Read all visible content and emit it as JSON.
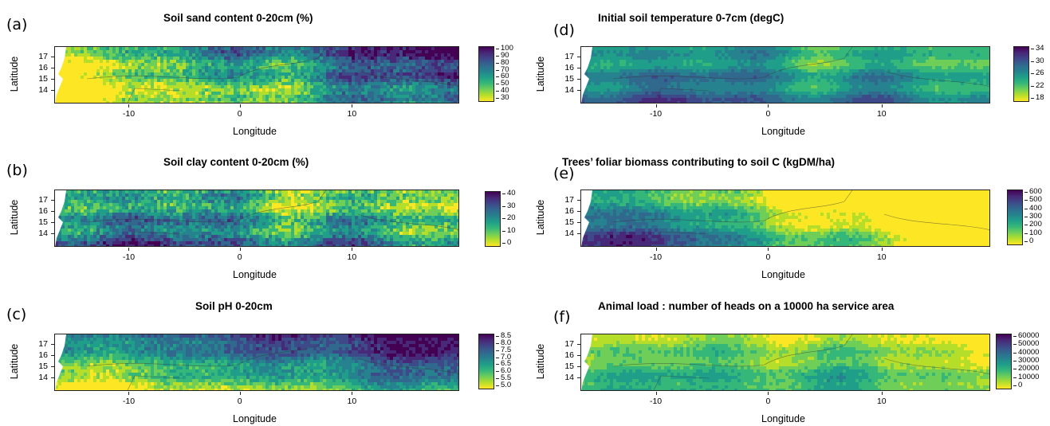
{
  "axes": {
    "xlabel": "Longitude",
    "ylabel": "Latitude",
    "xticks": [
      "-10",
      "0",
      "10"
    ],
    "yticks": [
      "17",
      "16",
      "15",
      "14"
    ]
  },
  "colors": {
    "viridis": [
      "#fde725",
      "#b5de2b",
      "#6ece58",
      "#35b779",
      "#1f9e89",
      "#26828e",
      "#31688e",
      "#3e4989",
      "#482878",
      "#440154"
    ]
  },
  "panels": [
    {
      "id": "a",
      "letter": "(a)",
      "title": "Soil sand content 0-20cm (%)",
      "legend": [
        "100",
        "90",
        "80",
        "70",
        "60",
        "50",
        "40",
        "30"
      ],
      "pattern": "sand"
    },
    {
      "id": "b",
      "letter": "(b)",
      "title": "Soil clay content 0-20cm (%)",
      "legend": [
        "40",
        "30",
        "20",
        "10",
        "0"
      ],
      "pattern": "clay"
    },
    {
      "id": "c",
      "letter": "(c)",
      "title": "Soil pH 0-20cm",
      "legend": [
        "8.5",
        "8.0",
        "7.5",
        "7.0",
        "6.5",
        "6.0",
        "5.5",
        "5.0"
      ],
      "pattern": "ph"
    },
    {
      "id": "d",
      "letter": "(d)",
      "title": "Initial soil temperature 0-7cm (degC)",
      "legend": [
        "34",
        "30",
        "26",
        "22",
        "18"
      ],
      "pattern": "temp"
    },
    {
      "id": "e",
      "letter": "(e)",
      "title": "Trees’ foliar biomass contributing to soil C (kgDM/ha)",
      "legend": [
        "600",
        "500",
        "400",
        "300",
        "200",
        "100",
        "0"
      ],
      "pattern": "trees"
    },
    {
      "id": "f",
      "letter": "(f)",
      "title": "Animal load : number of heads on a 10000 ha service area",
      "legend": [
        "60000",
        "50000",
        "40000",
        "30000",
        "20000",
        "10000",
        "0"
      ],
      "pattern": "animal"
    }
  ]
}
